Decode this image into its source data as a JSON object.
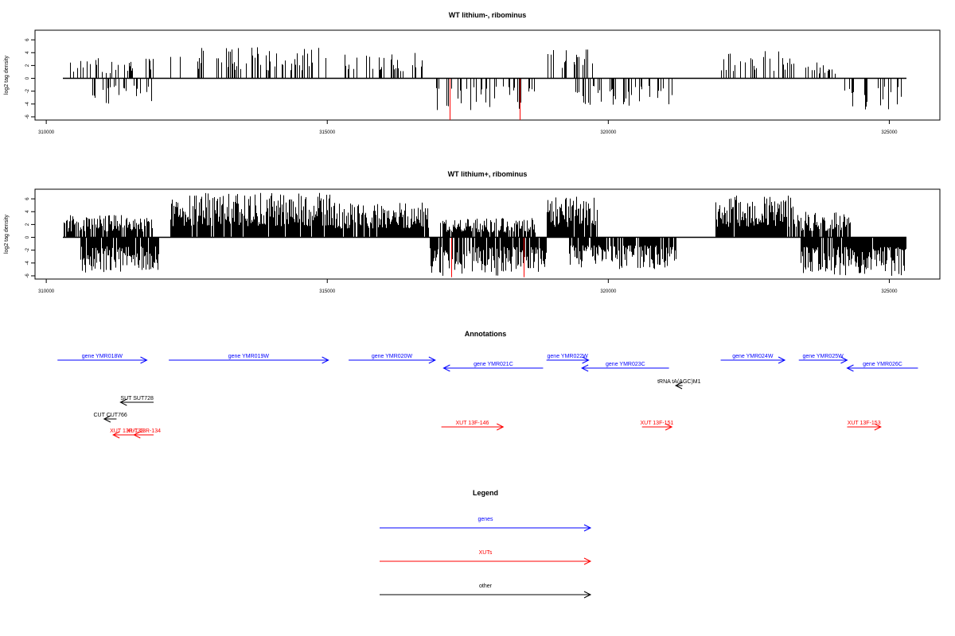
{
  "chart_data": [
    {
      "type": "bar",
      "title": "WT lithium-, ribominus",
      "ylabel": "log2 tag density",
      "xlim": [
        309800,
        325900
      ],
      "ylim": [
        -6.5,
        7.5
      ],
      "x_ticks": [
        310000,
        315000,
        320000,
        325000
      ],
      "y_ticks": [
        6,
        4,
        2,
        0,
        -2,
        -4,
        -6
      ],
      "baseline": [
        310300,
        325300
      ],
      "density": 0.28,
      "dense_regions": [],
      "positive_regions": [
        {
          "x": [
            310400,
            311900
          ],
          "max": 3.2
        },
        {
          "x": [
            312200,
            315000
          ],
          "max": 5.0
        },
        {
          "x": [
            315300,
            316700
          ],
          "max": 4.0
        },
        {
          "x": [
            318900,
            319800
          ],
          "max": 4.8
        },
        {
          "x": [
            322000,
            323300
          ],
          "max": 4.5
        },
        {
          "x": [
            323500,
            324200
          ],
          "max": 2.5
        }
      ],
      "negative_regions": [
        {
          "x": [
            310800,
            311900
          ],
          "max": 4.0
        },
        {
          "x": [
            316900,
            318700
          ],
          "max": 5.0
        },
        {
          "x": [
            319400,
            321200
          ],
          "max": 4.5
        },
        {
          "x": [
            324200,
            325300
          ],
          "max": 5.2
        }
      ],
      "red_bars": [
        {
          "x": 317180,
          "y": -6.5
        },
        {
          "x": 318420,
          "y": -6.5
        }
      ]
    },
    {
      "type": "bar",
      "title": "WT lithium+, ribominus",
      "ylabel": "log2 tag density",
      "xlim": [
        309800,
        325900
      ],
      "ylim": [
        -6.5,
        7.5
      ],
      "x_ticks": [
        310000,
        315000,
        320000,
        325000
      ],
      "y_ticks": [
        6,
        4,
        2,
        0,
        -2,
        -4,
        -6
      ],
      "baseline": [
        310300,
        325300
      ],
      "density": 0.95,
      "dense_regions": [
        [
          312200,
          316700
        ],
        [
          318900,
          319600
        ],
        [
          322000,
          323200
        ],
        [
          324300,
          325300
        ]
      ],
      "positive_regions": [
        {
          "x": [
            310300,
            311900
          ],
          "max": 3.5
        },
        {
          "x": [
            312200,
            315100
          ],
          "max": 7.0
        },
        {
          "x": [
            315100,
            316800
          ],
          "max": 5.5
        },
        {
          "x": [
            317000,
            318700
          ],
          "max": 3.0
        },
        {
          "x": [
            318900,
            319800
          ],
          "max": 6.5
        },
        {
          "x": [
            321900,
            323300
          ],
          "max": 6.5
        },
        {
          "x": [
            323300,
            324300
          ],
          "max": 4.0
        }
      ],
      "negative_regions": [
        {
          "x": [
            310600,
            312000
          ],
          "max": 5.5
        },
        {
          "x": [
            316800,
            318900
          ],
          "max": 6.0
        },
        {
          "x": [
            319300,
            321200
          ],
          "max": 5.0
        },
        {
          "x": [
            323400,
            325300
          ],
          "max": 6.0
        }
      ],
      "red_bars": [
        {
          "x": 317200,
          "y": -6.2
        },
        {
          "x": 318500,
          "y": -6.2
        }
      ]
    }
  ],
  "annotations": {
    "title": "Annotations",
    "features": [
      {
        "label": "gene YMR018W",
        "start": 310200,
        "end": 311790,
        "dir": "right",
        "color": "#0000ff",
        "row": 0
      },
      {
        "label": "gene YMR019W",
        "start": 312180,
        "end": 315020,
        "dir": "right",
        "color": "#0000ff",
        "row": 0
      },
      {
        "label": "gene YMR020W",
        "start": 315380,
        "end": 316920,
        "dir": "right",
        "color": "#0000ff",
        "row": 0
      },
      {
        "label": "gene YMR021C",
        "start": 317070,
        "end": 318840,
        "dir": "left",
        "color": "#0000ff",
        "row": 1
      },
      {
        "label": "gene YMR022W",
        "start": 318900,
        "end": 319650,
        "dir": "right",
        "color": "#0000ff",
        "row": 0
      },
      {
        "label": "gene YMR023C",
        "start": 319530,
        "end": 321080,
        "dir": "left",
        "color": "#0000ff",
        "row": 1
      },
      {
        "label": "gene YMR024W",
        "start": 322000,
        "end": 323140,
        "dir": "right",
        "color": "#0000ff",
        "row": 0
      },
      {
        "label": "gene YMR025W",
        "start": 323390,
        "end": 324250,
        "dir": "right",
        "color": "#0000ff",
        "row": 0
      },
      {
        "label": "gene YMR026C",
        "start": 324250,
        "end": 325510,
        "dir": "left",
        "color": "#0000ff",
        "row": 1
      },
      {
        "label": "tRNA tA(AGC)M1",
        "start": 321200,
        "end": 321320,
        "dir": "left",
        "color": "#000000",
        "row": 2
      },
      {
        "label": "SUT SUT728",
        "start": 311320,
        "end": 311910,
        "dir": "left",
        "color": "#000000",
        "row": 3
      },
      {
        "label": "CUT CUT766",
        "start": 311030,
        "end": 311250,
        "dir": "left",
        "color": "#000000",
        "row": 4
      },
      {
        "label": "XUT 13F-146",
        "start": 317030,
        "end": 318130,
        "dir": "right",
        "color": "#ff0000",
        "row": 5
      },
      {
        "label": "XUT 13F-151",
        "start": 320600,
        "end": 321130,
        "dir": "right",
        "color": "#ff0000",
        "row": 5
      },
      {
        "label": "XUT 13F-153",
        "start": 324250,
        "end": 324850,
        "dir": "right",
        "color": "#ff0000",
        "row": 5
      },
      {
        "label": "XUT 13R-133",
        "start": 311190,
        "end": 311680,
        "dir": "left",
        "color": "#ff0000",
        "row": 6
      },
      {
        "label": "XUT 13R-134",
        "start": 311560,
        "end": 311910,
        "dir": "left",
        "color": "#ff0000",
        "row": 6
      }
    ]
  },
  "legend": {
    "title": "Legend",
    "items": [
      {
        "label": "genes",
        "color": "#0000ff"
      },
      {
        "label": "XUTs",
        "color": "#ff0000"
      },
      {
        "label": "other",
        "color": "#000000"
      }
    ]
  }
}
